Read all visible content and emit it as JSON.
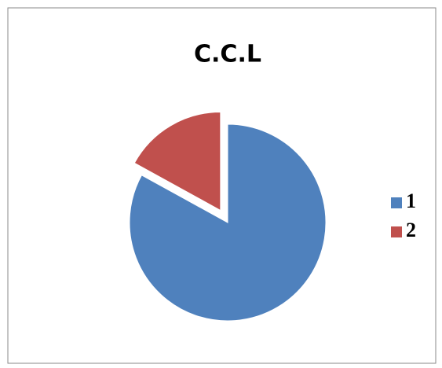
{
  "chart_data": {
    "type": "pie",
    "title": "C.C.L",
    "categories": [
      "1",
      "2"
    ],
    "values": [
      83,
      17
    ],
    "colors": [
      "#4f81bd",
      "#c0504d"
    ],
    "exploded": [
      false,
      true
    ],
    "legend": "right"
  }
}
